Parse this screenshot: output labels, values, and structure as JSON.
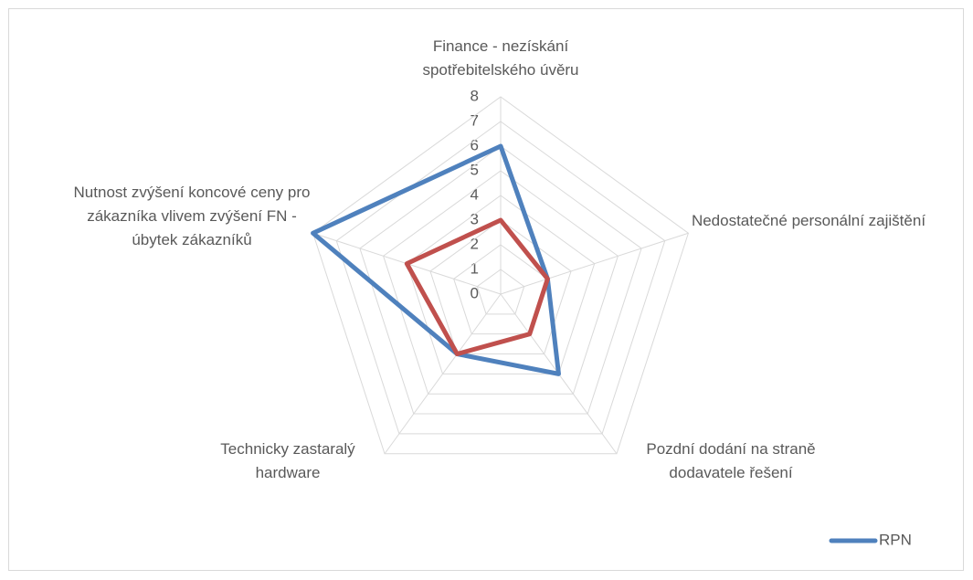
{
  "chart_data": {
    "type": "radar",
    "categories": [
      "Finance - nezískání spotřebitelského úvěru",
      "Nedostatečné personální zajištění",
      "Pozdní dodání na straně dodavatele řešení",
      "Technicky zastaralý hardware",
      "Nutnost zvýšení koncové ceny pro zákazníka vlivem zvýšení FN - úbytek zákazníků"
    ],
    "series": [
      {
        "name": "RPN",
        "color": "#4f81bd",
        "values": [
          6,
          2,
          4,
          3,
          8
        ]
      },
      {
        "name": null,
        "color": "#c0504d",
        "values": [
          3,
          2,
          2,
          3,
          4
        ]
      }
    ],
    "rlim": [
      0,
      8
    ],
    "rticks": [
      0,
      1,
      2,
      3,
      4,
      5,
      6,
      7,
      8
    ],
    "grid": true,
    "legend": "bottom-right"
  }
}
